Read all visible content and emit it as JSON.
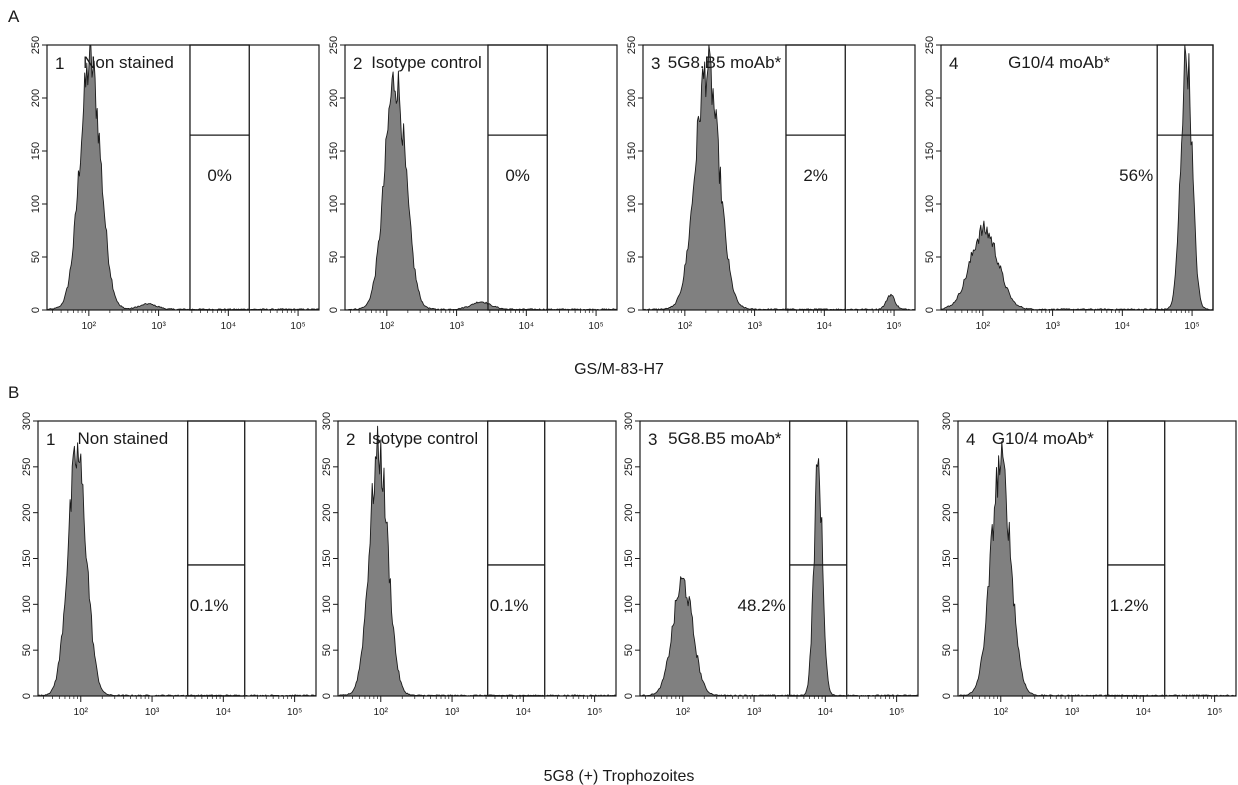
{
  "chart_data": [
    {
      "type": "area",
      "row": "A",
      "index": "1",
      "title": "Non stained",
      "gate_label": "0%",
      "ylim": [
        0,
        250
      ],
      "yticks": [
        0,
        50,
        100,
        150,
        200,
        250
      ],
      "xticks": [
        "10²",
        "10³",
        "10⁴",
        "10⁵"
      ],
      "gate_range": [
        3.45,
        4.3
      ],
      "gate_split": 165,
      "peaks": [
        {
          "center": 2.02,
          "sigma": 0.15,
          "height": 240
        },
        {
          "center": 2.85,
          "sigma": 0.12,
          "height": 6
        }
      ]
    },
    {
      "type": "area",
      "row": "A",
      "index": "2",
      "title": "Isotype control",
      "gate_label": "0%",
      "ylim": [
        0,
        250
      ],
      "yticks": [
        0,
        50,
        100,
        150,
        200,
        250
      ],
      "xticks": [
        "10²",
        "10³",
        "10⁴",
        "10⁵"
      ],
      "gate_range": [
        3.45,
        4.3
      ],
      "gate_split": 165,
      "peaks": [
        {
          "center": 2.12,
          "sigma": 0.15,
          "height": 225
        },
        {
          "center": 3.35,
          "sigma": 0.14,
          "height": 8
        }
      ]
    },
    {
      "type": "area",
      "row": "A",
      "index": "3",
      "title": "5G8.B5 moAb*",
      "gate_label": "2%",
      "ylim": [
        0,
        250
      ],
      "yticks": [
        0,
        50,
        100,
        150,
        200,
        250
      ],
      "xticks": [
        "10²",
        "10³",
        "10⁴",
        "10⁵"
      ],
      "gate_range": [
        3.45,
        4.3
      ],
      "gate_split": 165,
      "peaks": [
        {
          "center": 2.32,
          "sigma": 0.17,
          "height": 235
        },
        {
          "center": 4.95,
          "sigma": 0.06,
          "height": 15
        }
      ]
    },
    {
      "type": "area",
      "row": "A",
      "index": "4",
      "title": "G10/4 moAb*",
      "gate_label": "56%",
      "ylim": [
        0,
        250
      ],
      "yticks": [
        0,
        50,
        100,
        150,
        200,
        250
      ],
      "xticks": [
        "10²",
        "10³",
        "10⁴",
        "10⁵"
      ],
      "gate_range": [
        4.5,
        5.3
      ],
      "gate_split": 165,
      "peaks": [
        {
          "center": 2.02,
          "sigma": 0.2,
          "height": 78
        },
        {
          "center": 4.92,
          "sigma": 0.08,
          "height": 250
        }
      ]
    },
    {
      "type": "area",
      "row": "B",
      "index": "1",
      "title": "Non stained",
      "gate_label": "0.1%",
      "ylim": [
        0,
        300
      ],
      "yticks": [
        0,
        50,
        100,
        150,
        200,
        250,
        300
      ],
      "xticks": [
        "10²",
        "10³",
        "10⁴",
        "10⁵"
      ],
      "gate_range": [
        3.5,
        4.3
      ],
      "gate_split": 143,
      "peaks": [
        {
          "center": 1.95,
          "sigma": 0.13,
          "height": 270
        }
      ]
    },
    {
      "type": "area",
      "row": "B",
      "index": "2",
      "title": "Isotype control",
      "gate_label": "0.1%",
      "ylim": [
        0,
        300
      ],
      "yticks": [
        0,
        50,
        100,
        150,
        200,
        250,
        300
      ],
      "xticks": [
        "10²",
        "10³",
        "10⁴",
        "10⁵"
      ],
      "gate_range": [
        3.5,
        4.3
      ],
      "gate_split": 143,
      "peaks": [
        {
          "center": 1.97,
          "sigma": 0.13,
          "height": 275
        }
      ]
    },
    {
      "type": "area",
      "row": "B",
      "index": "3",
      "title": "5G8.B5 moAb*",
      "gate_label": "48.2%",
      "ylim": [
        0,
        300
      ],
      "yticks": [
        0,
        50,
        100,
        150,
        200,
        250,
        300
      ],
      "xticks": [
        "10²",
        "10³",
        "10⁴",
        "10⁵"
      ],
      "gate_range": [
        3.5,
        4.3
      ],
      "gate_split": 143,
      "peaks": [
        {
          "center": 2.0,
          "sigma": 0.14,
          "height": 128
        },
        {
          "center": 3.9,
          "sigma": 0.06,
          "height": 258
        }
      ]
    },
    {
      "type": "area",
      "row": "B",
      "index": "4",
      "title": "G10/4 moAb*",
      "gate_label": "1.2%",
      "ylim": [
        0,
        300
      ],
      "yticks": [
        0,
        50,
        100,
        150,
        200,
        250,
        300
      ],
      "xticks": [
        "10²",
        "10³",
        "10⁴",
        "10⁵"
      ],
      "gate_range": [
        3.5,
        4.3
      ],
      "gate_split": 143,
      "peaks": [
        {
          "center": 2.0,
          "sigma": 0.14,
          "height": 260
        }
      ]
    }
  ],
  "figure": {
    "panel_letter_a": "A",
    "panel_letter_b": "B",
    "caption_a": "GS/M-83-H7",
    "caption_b": "5G8 (+) Trophozoites"
  }
}
